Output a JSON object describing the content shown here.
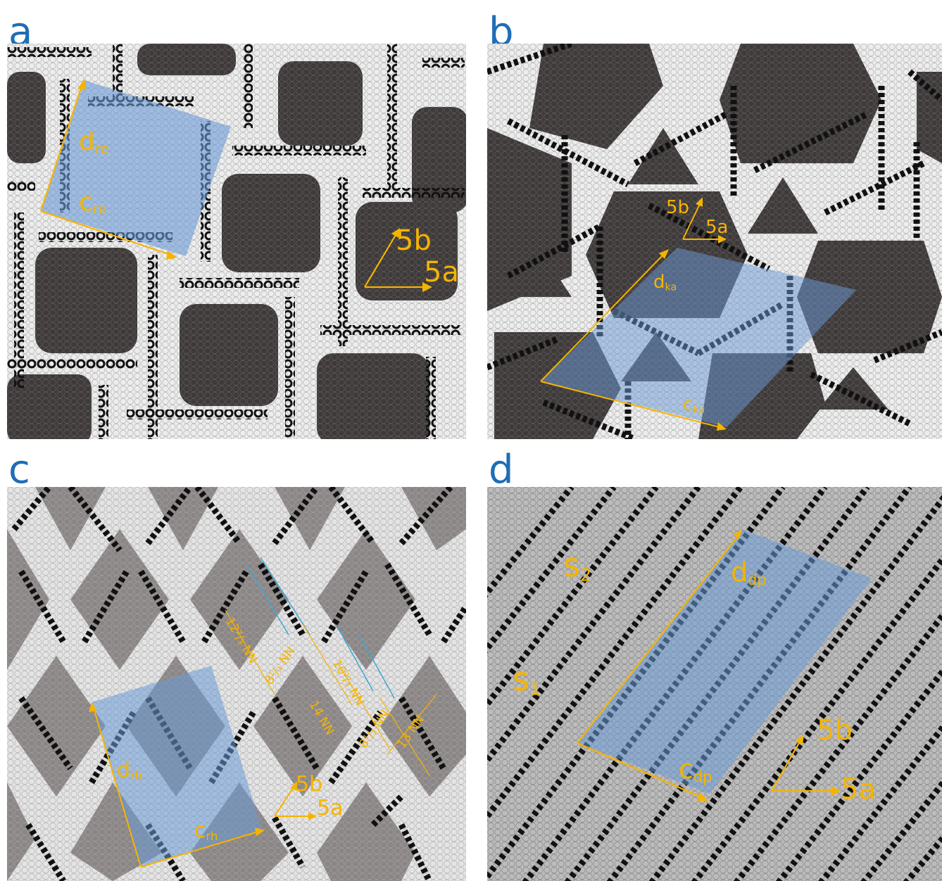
{
  "panels": {
    "a": {
      "letter": "a",
      "d_label": "d",
      "d_sub": "re",
      "c_label": "c",
      "c_sub": "re",
      "b_label": "5b",
      "a_label": "5a"
    },
    "b": {
      "letter": "b",
      "d_label": "d",
      "d_sub": "ka",
      "c_label": "c",
      "c_sub": "ka",
      "b_label": "5b",
      "a_label": "5a"
    },
    "c": {
      "letter": "c",
      "d_label": "d",
      "d_sub": "rh",
      "c_label": "c",
      "c_sub": "rh",
      "b_label": "5b",
      "a_label": "5a",
      "distances": [
        "12²/₃ NN",
        "8¹/₃ NN",
        "10²/₃ NN",
        "14 NN",
        "8¹/₃ NN",
        "13 NN"
      ]
    },
    "d": {
      "letter": "d",
      "d_label": "d",
      "d_sub": "dp",
      "c_label": "c",
      "c_sub": "dp",
      "b_label": "5b",
      "a_label": "5a",
      "s1": "s",
      "s1_sub": "1",
      "s2": "s",
      "s2_sub": "2"
    }
  },
  "colors": {
    "accent": "#f5b400",
    "letter": "#1f6db5",
    "cell": "#6a9ad6",
    "molecule": "#111111",
    "nitrogen": "#2a3fa8"
  }
}
